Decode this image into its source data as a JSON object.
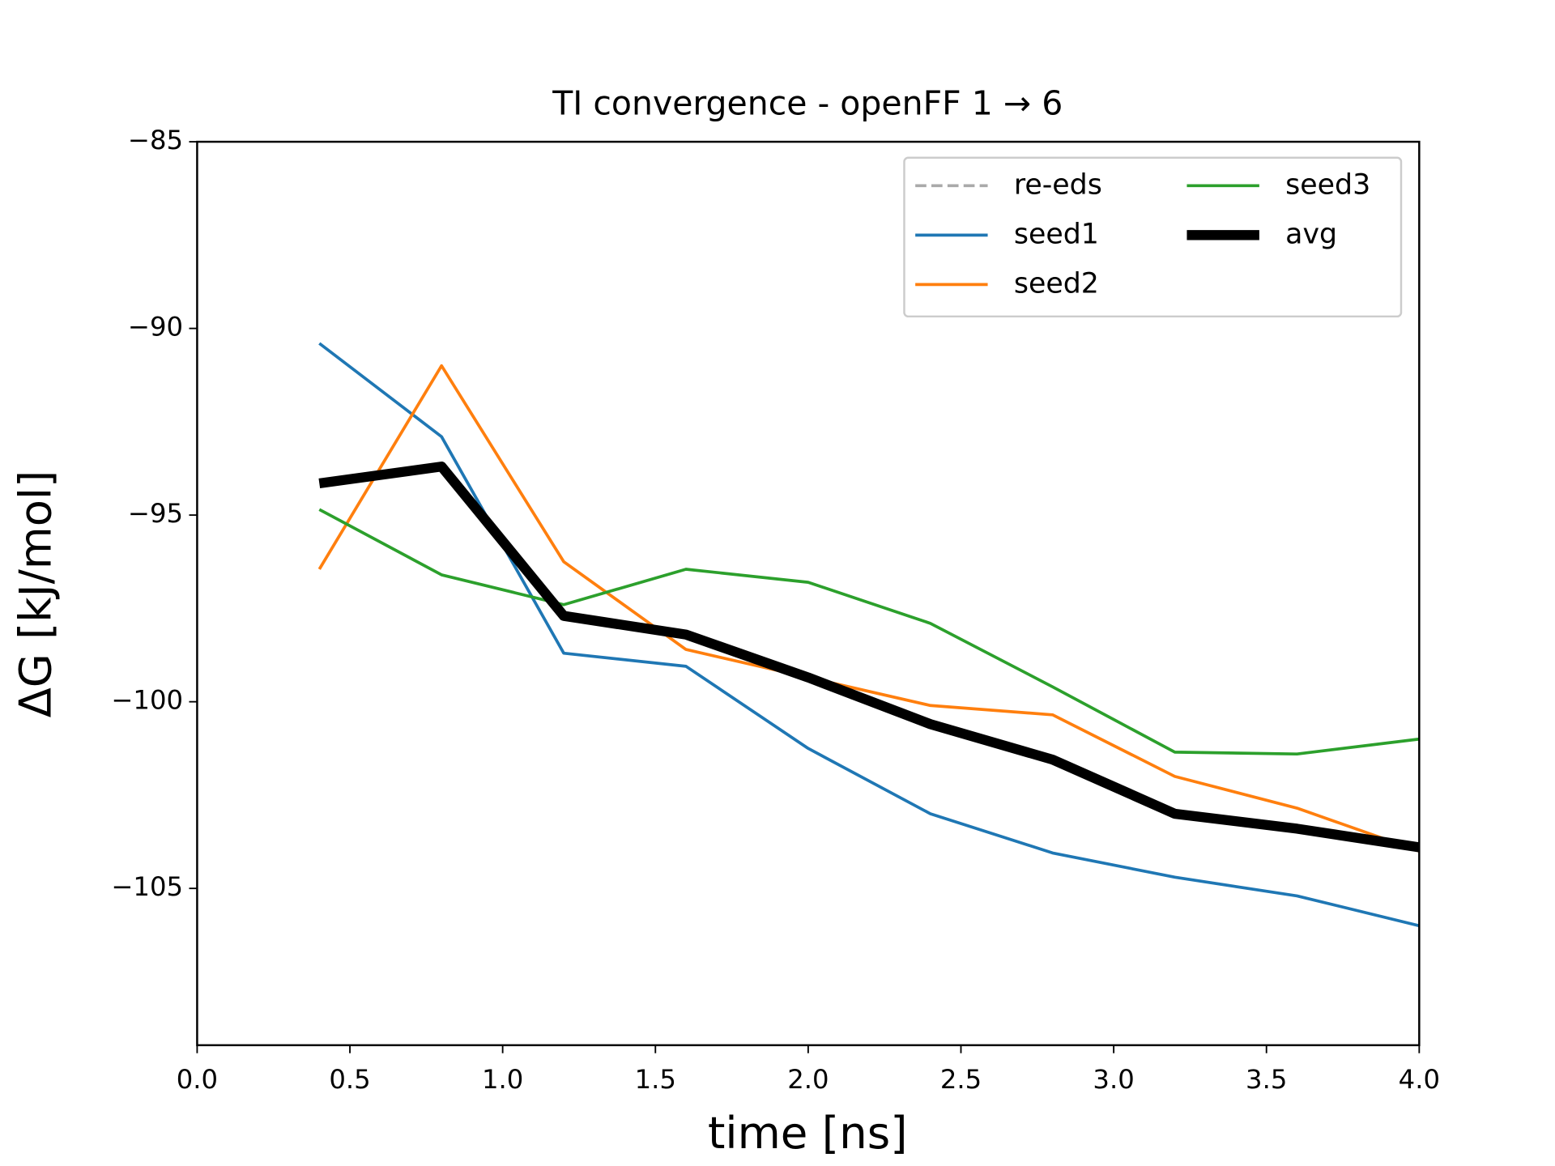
{
  "chart_data": {
    "type": "line",
    "title": "TI convergence - openFF 1 → 6",
    "xlabel": "time [ns]",
    "ylabel": "ΔG [kJ/mol]",
    "x": [
      0.4,
      0.8,
      1.2,
      1.6,
      2.0,
      2.4,
      2.8,
      3.2,
      3.6,
      4.0
    ],
    "series": [
      {
        "name": "re-eds",
        "color": "#aaaaaa",
        "dashed": true,
        "values": [
          null,
          null,
          null,
          null,
          null,
          null,
          null,
          null,
          null,
          null
        ]
      },
      {
        "name": "seed1",
        "color": "#1f77b4",
        "values": [
          -90.4,
          -92.9,
          -98.7,
          -99.05,
          -101.25,
          -103.0,
          -104.05,
          -104.7,
          -105.2,
          -106.0
        ]
      },
      {
        "name": "seed2",
        "color": "#ff7f0e",
        "values": [
          -96.45,
          -91.0,
          -96.25,
          -98.6,
          -99.35,
          -100.1,
          -100.35,
          -102.0,
          -102.85,
          -104.0
        ]
      },
      {
        "name": "seed3",
        "color": "#2ca02c",
        "values": [
          -94.85,
          -96.6,
          -97.4,
          -96.45,
          -96.8,
          -97.9,
          -99.6,
          -101.35,
          -101.4,
          -101.0
        ]
      },
      {
        "name": "avg",
        "color": "#000000",
        "bold": true,
        "values": [
          -94.15,
          -93.7,
          -97.7,
          -98.2,
          -99.35,
          -100.6,
          -101.55,
          -103.0,
          -103.4,
          -103.9
        ]
      }
    ],
    "xlim": [
      0,
      4
    ],
    "ylim": [
      -109.2,
      -85
    ],
    "xticks": [
      {
        "value": 0,
        "label": "0.0"
      },
      0.5,
      {
        "value": 1,
        "label": "1.0"
      },
      1.5,
      {
        "value": 2,
        "label": "2.0"
      },
      2.5,
      {
        "value": 3,
        "label": "3.0"
      },
      3.5,
      {
        "value": 4,
        "label": "4.0"
      }
    ],
    "yticks": [
      {
        "value": -85,
        "label": "−85"
      },
      {
        "value": -90,
        "label": "−90"
      },
      {
        "value": -95,
        "label": "−95"
      },
      {
        "value": -100,
        "label": "−100"
      },
      {
        "value": -105,
        "label": "−105"
      }
    ],
    "legend": "upper right",
    "legend_columns": 2,
    "grid": false
  }
}
